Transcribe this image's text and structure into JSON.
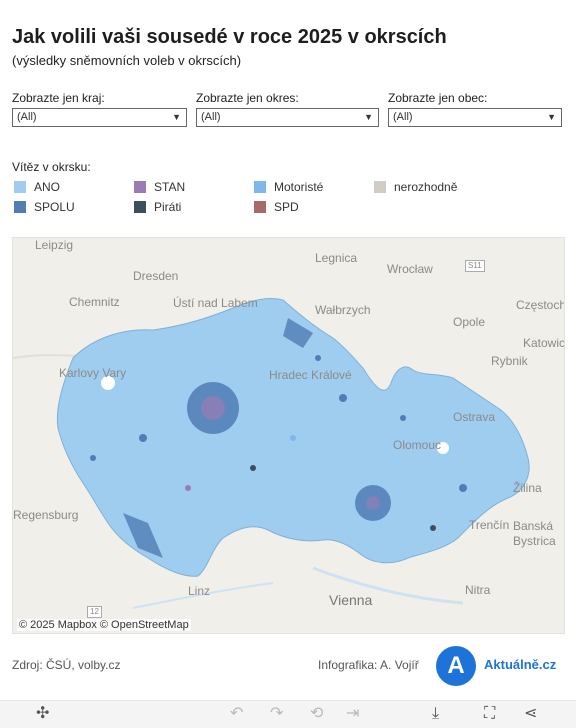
{
  "header": {
    "title": "Jak volili vaši sousedé v roce 2025 v okrscích",
    "subtitle": "(výsledky sněmovních voleb v okrscích)"
  },
  "filters": [
    {
      "label": "Zobrazte jen kraj:",
      "value": "(All)"
    },
    {
      "label": "Zobrazte jen okres:",
      "value": "(All)"
    },
    {
      "label": "Zobrazte jen obec:",
      "value": "(All)"
    }
  ],
  "legend": {
    "title": "Vítěz v okrsku:",
    "items": [
      {
        "label": "ANO",
        "color": "#9fcdf0"
      },
      {
        "label": "SPOLU",
        "color": "#4f7db4"
      },
      {
        "label": "STAN",
        "color": "#9a7bb5"
      },
      {
        "label": "Piráti",
        "color": "#3d4f5e"
      },
      {
        "label": "Motoristé",
        "color": "#7fb6ec"
      },
      {
        "label": "SPD",
        "color": "#a56a6a"
      },
      {
        "label": "nerozhodně",
        "color": "#d2ccc7"
      }
    ]
  },
  "map": {
    "cities": [
      "Leipzig",
      "Dresden",
      "Chemnitz",
      "Ústí nad Labem",
      "Legnica",
      "Wrocław",
      "Wałbrzych",
      "Opole",
      "Częstochowa",
      "Katowice",
      "Rybnik",
      "Karlovy Vary",
      "Hradec Králové",
      "Ostrava",
      "Olomouc",
      "Žilina",
      "Banská Bystrica",
      "Trenčín",
      "Regensburg",
      "Linz",
      "Vienna",
      "Nitra"
    ],
    "road_labels": [
      "S11",
      "12"
    ],
    "credits": "© 2025 Mapbox  © OpenStreetMap"
  },
  "footer": {
    "source": "Zdroj: ČSÚ, volby.cz",
    "author": "Infografika: A. Vojíř",
    "logo_letter": "A",
    "brand": "Aktuálně.cz"
  },
  "toolbar": {
    "icons": [
      "tableau-logo-icon",
      "undo-icon",
      "redo-icon",
      "revert-icon",
      "pause-icon",
      "download-icon",
      "fullscreen-icon",
      "share-icon"
    ]
  }
}
